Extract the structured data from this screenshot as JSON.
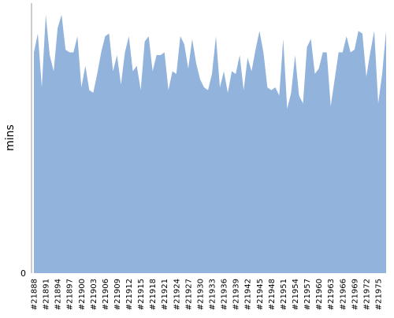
{
  "chart_data": {
    "type": "area",
    "ylabel": "mins",
    "categories": [
      "#21888",
      null,
      null,
      "#21891",
      null,
      null,
      "#21894",
      null,
      null,
      "#21897",
      null,
      null,
      "#21900",
      null,
      null,
      "#21903",
      null,
      null,
      "#21906",
      null,
      null,
      "#21909",
      null,
      null,
      "#21912",
      null,
      null,
      "#21915",
      null,
      null,
      "#21918",
      null,
      null,
      "#21921",
      null,
      null,
      "#21924",
      null,
      null,
      "#21927",
      null,
      null,
      "#21930",
      null,
      null,
      "#21933",
      null,
      null,
      "#21936",
      null,
      null,
      "#21939",
      null,
      null,
      "#21942",
      null,
      null,
      "#21945",
      null,
      null,
      "#21948",
      null,
      null,
      "#21951",
      null,
      null,
      "#21954",
      null,
      null,
      "#21957",
      null,
      null,
      "#21960",
      null,
      null,
      "#21963",
      null,
      null,
      "#21966",
      null,
      null,
      "#21969",
      null,
      null,
      "#21972",
      null,
      null,
      "#21975",
      null,
      null
    ],
    "values": [
      82,
      89,
      69,
      96,
      81,
      75,
      91,
      96,
      83,
      82,
      82,
      88,
      69,
      77,
      68,
      67,
      74,
      82,
      88,
      89,
      75,
      81,
      70,
      82,
      88,
      75,
      77,
      68,
      86,
      88,
      75,
      81,
      81,
      82,
      68,
      75,
      74,
      88,
      85,
      76,
      87,
      78,
      72,
      69,
      68,
      74,
      88,
      69,
      75,
      67,
      75,
      74,
      81,
      68,
      80,
      75,
      83,
      90,
      82,
      69,
      68,
      69,
      66,
      87,
      61,
      67,
      81,
      66,
      63,
      84,
      87,
      74,
      76,
      82,
      82,
      62,
      72,
      82,
      82,
      88,
      82,
      83,
      90,
      89,
      73,
      82,
      90,
      63,
      74,
      90
    ],
    "color": "#92b3dc",
    "ylim": [
      0,
      100
    ],
    "yticks": [
      0
    ]
  }
}
